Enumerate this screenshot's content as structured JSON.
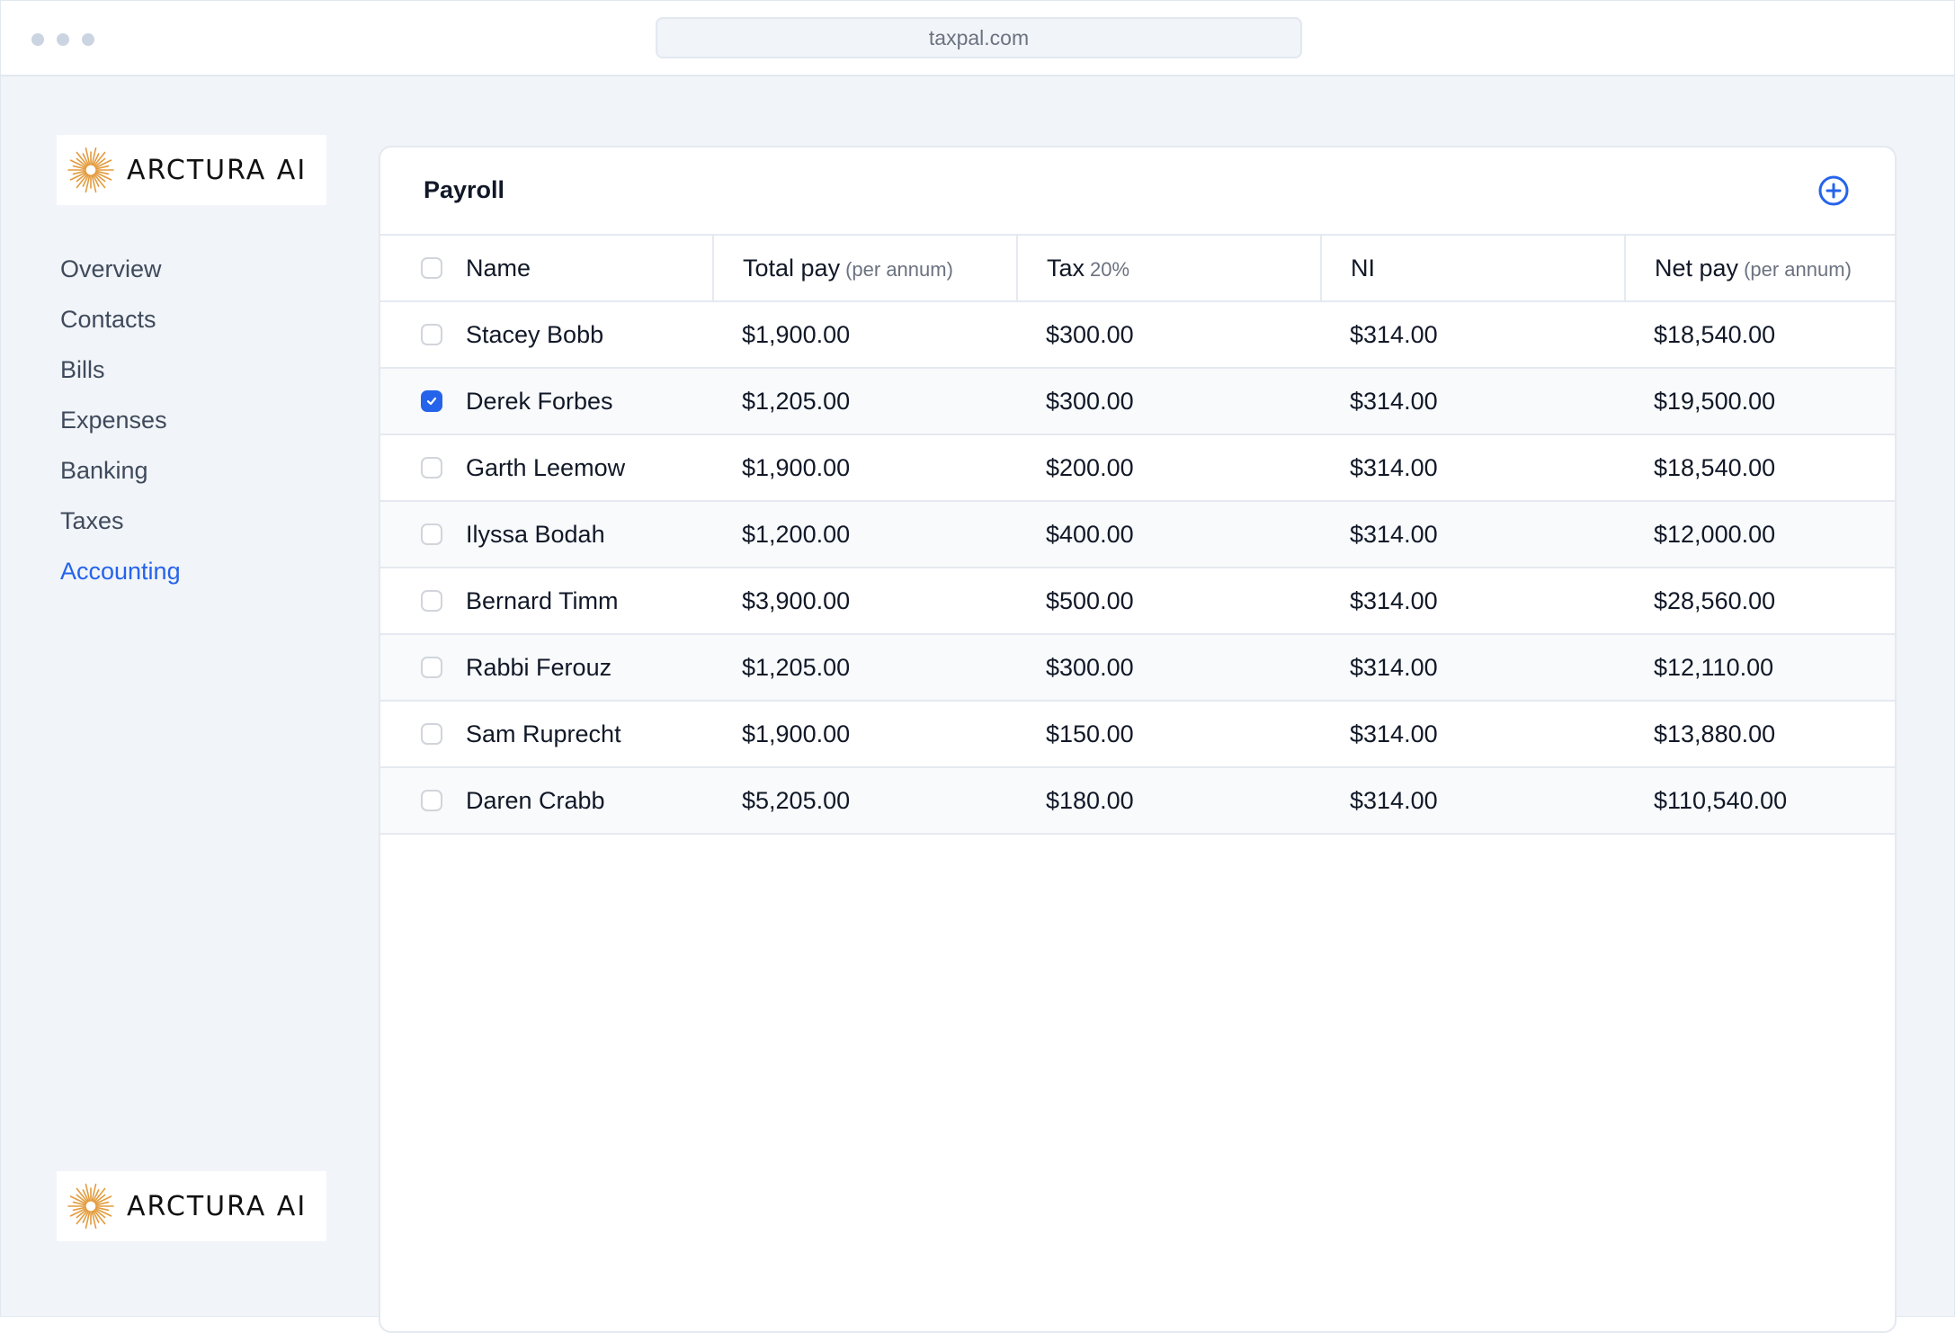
{
  "browser": {
    "url": "taxpal.com"
  },
  "brand": {
    "name": "ARCTURA AI",
    "accent": "#e39b3d"
  },
  "colors": {
    "link_active": "#2563eb",
    "checkbox_checked": "#2563eb"
  },
  "sidebar": {
    "items": [
      {
        "label": "Overview",
        "active": false
      },
      {
        "label": "Contacts",
        "active": false
      },
      {
        "label": "Bills",
        "active": false
      },
      {
        "label": "Expenses",
        "active": false
      },
      {
        "label": "Banking",
        "active": false
      },
      {
        "label": "Taxes",
        "active": false
      },
      {
        "label": "Accounting",
        "active": true
      }
    ]
  },
  "payroll": {
    "title": "Payroll",
    "add_icon": "plus-circle-icon",
    "columns": [
      {
        "label": "Name",
        "sub": ""
      },
      {
        "label": "Total pay",
        "sub": "(per annum)"
      },
      {
        "label": "Tax",
        "sub": "20%"
      },
      {
        "label": "NI",
        "sub": ""
      },
      {
        "label": "Net pay",
        "sub": "(per annum)"
      }
    ],
    "rows": [
      {
        "name": "Stacey Bobb",
        "total": "$1,900.00",
        "tax": "$300.00",
        "ni": "$314.00",
        "net": "$18,540.00",
        "checked": false
      },
      {
        "name": "Derek Forbes",
        "total": "$1,205.00",
        "tax": "$300.00",
        "ni": "$314.00",
        "net": "$19,500.00",
        "checked": true
      },
      {
        "name": "Garth Leemow",
        "total": "$1,900.00",
        "tax": "$200.00",
        "ni": "$314.00",
        "net": "$18,540.00",
        "checked": false
      },
      {
        "name": "Ilyssa Bodah",
        "total": "$1,200.00",
        "tax": "$400.00",
        "ni": "$314.00",
        "net": "$12,000.00",
        "checked": false
      },
      {
        "name": "Bernard Timm",
        "total": "$3,900.00",
        "tax": "$500.00",
        "ni": "$314.00",
        "net": "$28,560.00",
        "checked": false
      },
      {
        "name": "Rabbi Ferouz",
        "total": "$1,205.00",
        "tax": "$300.00",
        "ni": "$314.00",
        "net": "$12,110.00",
        "checked": false
      },
      {
        "name": "Sam Ruprecht",
        "total": "$1,900.00",
        "tax": "$150.00",
        "ni": "$314.00",
        "net": "$13,880.00",
        "checked": false
      },
      {
        "name": "Daren Crabb",
        "total": "$5,205.00",
        "tax": "$180.00",
        "ni": "$314.00",
        "net": "$110,540.00",
        "checked": false
      }
    ]
  }
}
